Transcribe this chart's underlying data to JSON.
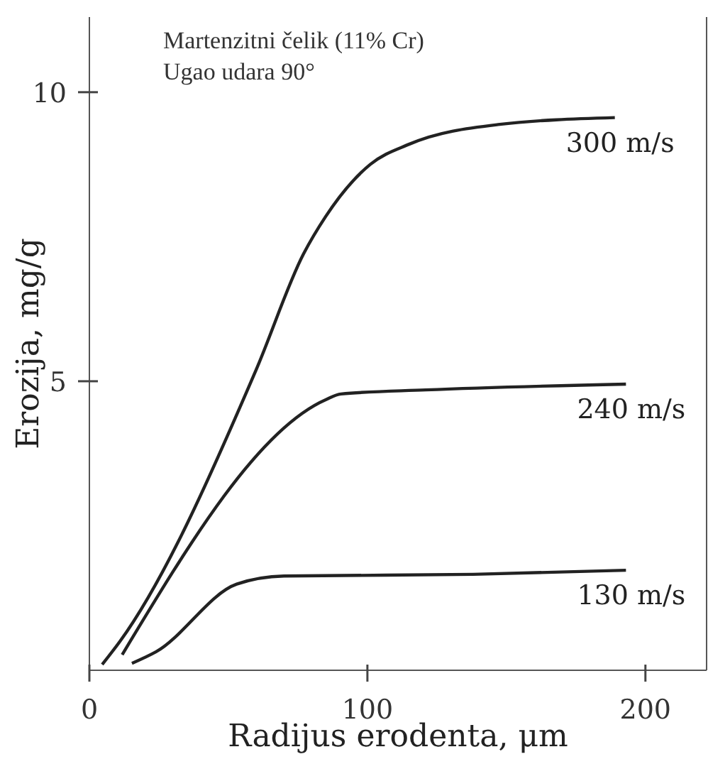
{
  "chart_data": {
    "type": "line",
    "xlabel": "Radijus erodenta, μm",
    "ylabel": "Erozija, mg/g",
    "annotations": [
      "Martenzitni čelik (11% Cr)",
      "Ugao udara 90°"
    ],
    "xlim": [
      0,
      222
    ],
    "xticks": [
      0,
      100,
      200
    ],
    "ylim": [
      0,
      11.3
    ],
    "yticks": [
      5,
      10
    ],
    "marker": "none",
    "line_style": "solid",
    "series": [
      {
        "name": "300 m/s",
        "color": "#222222",
        "x": [
          4.6,
          11,
          60,
          77,
          85,
          101,
          115,
          147,
          189
        ],
        "values": [
          0.1,
          0.5,
          5.2,
          7.2,
          7.85,
          8.75,
          9.1,
          9.44,
          9.56
        ]
      },
      {
        "name": "240 m/s",
        "color": "#222222",
        "x": [
          11.8,
          85,
          90.5,
          121,
          193
        ],
        "values": [
          0.27,
          4.68,
          4.78,
          4.85,
          4.95
        ]
      },
      {
        "name": "130 m/s",
        "color": "#222222",
        "x": [
          15.3,
          24,
          53,
          70,
          138,
          193
        ],
        "values": [
          0.12,
          0.32,
          1.49,
          1.63,
          1.66,
          1.73
        ]
      }
    ]
  }
}
